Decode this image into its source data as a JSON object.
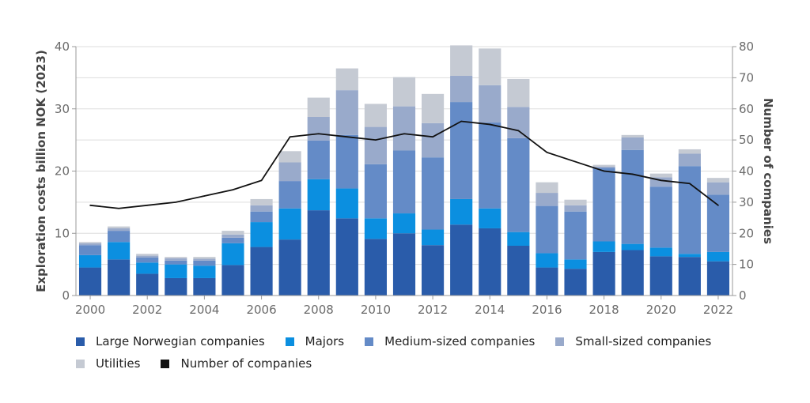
{
  "chart_data": {
    "type": "bar",
    "stacked": true,
    "x": [
      2000,
      2001,
      2002,
      2003,
      2004,
      2005,
      2006,
      2007,
      2008,
      2009,
      2010,
      2011,
      2012,
      2013,
      2014,
      2015,
      2016,
      2017,
      2018,
      2019,
      2020,
      2021,
      2022
    ],
    "x_ticks": [
      "2000",
      "2002",
      "2004",
      "2006",
      "2008",
      "2010",
      "2012",
      "2014",
      "2016",
      "2018",
      "2020",
      "2022"
    ],
    "ylabel": "Exploration costs billion NOK (2023)",
    "y2label": "Number of companies",
    "ylim": [
      0,
      40
    ],
    "y_ticks": [
      "0",
      "10",
      "20",
      "30",
      "40"
    ],
    "y2lim": [
      0,
      80
    ],
    "y2_ticks": [
      "0",
      "10",
      "20",
      "30",
      "40",
      "50",
      "60",
      "70",
      "80"
    ],
    "grid": true,
    "legend_position": "bottom",
    "series": [
      {
        "name": "Large Norwegian companies",
        "color": "#2a5caa",
        "values": [
          4.5,
          5.8,
          3.5,
          2.8,
          2.8,
          4.9,
          7.8,
          9.0,
          13.7,
          12.4,
          9.1,
          10.0,
          8.1,
          11.4,
          10.8,
          8.0,
          4.5,
          4.3,
          7.0,
          7.3,
          6.3,
          6.2,
          5.5
        ]
      },
      {
        "name": "Majors",
        "color": "#0b8fe0",
        "values": [
          2.0,
          2.8,
          1.8,
          2.2,
          2.0,
          3.5,
          4.0,
          5.0,
          5.0,
          4.8,
          3.3,
          3.2,
          2.5,
          4.1,
          3.2,
          2.2,
          2.3,
          1.5,
          1.7,
          1.0,
          1.4,
          0.5,
          1.5
        ]
      },
      {
        "name": "Medium-sized companies",
        "color": "#648bc7",
        "values": [
          1.6,
          1.8,
          0.8,
          0.6,
          0.8,
          0.9,
          1.7,
          4.4,
          6.2,
          8.6,
          8.7,
          10.1,
          11.6,
          15.6,
          13.8,
          15.1,
          7.6,
          7.7,
          11.8,
          15.1,
          9.8,
          14.1,
          9.2
        ]
      },
      {
        "name": "Small-sized companies",
        "color": "#99aacb",
        "values": [
          0.3,
          0.4,
          0.3,
          0.4,
          0.3,
          0.5,
          1.0,
          3.0,
          3.8,
          7.2,
          6.0,
          7.1,
          5.5,
          4.2,
          6.0,
          5.0,
          2.1,
          1.0,
          0.2,
          2.0,
          1.5,
          2.0,
          2.0
        ]
      },
      {
        "name": "Utilities",
        "color": "#c5cad3",
        "values": [
          0.2,
          0.3,
          0.3,
          0.2,
          0.3,
          0.6,
          1.0,
          1.8,
          3.1,
          3.5,
          3.7,
          4.7,
          4.7,
          4.9,
          5.9,
          4.5,
          1.7,
          0.9,
          0.3,
          0.4,
          0.6,
          0.7,
          0.7
        ]
      }
    ],
    "line": {
      "name": "Number of companies",
      "color": "#111111",
      "axis": "right",
      "values": [
        29,
        28,
        29,
        30,
        32,
        34,
        37,
        51,
        52,
        51,
        50,
        52,
        51,
        56,
        55,
        53,
        46,
        43,
        40,
        39,
        37,
        36,
        29
      ]
    }
  }
}
